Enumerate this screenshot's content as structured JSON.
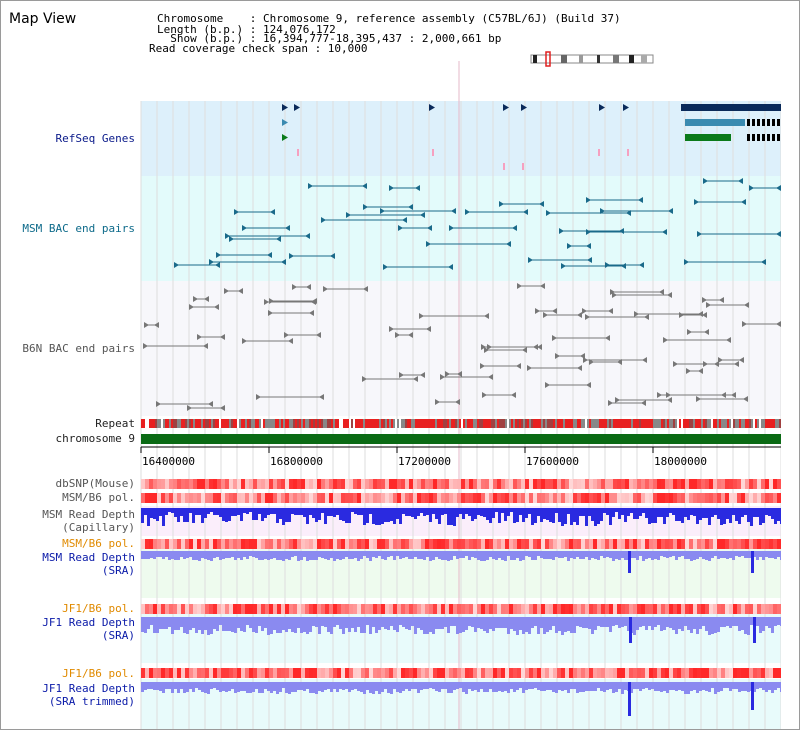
{
  "header": {
    "title": "Map View",
    "chromosome_line": "Chromosome    : Chromosome 9, reference assembly (C57BL/6J) (Build 37)",
    "length_line": "Length (b.p.) : 124,076,172",
    "show_line": "  Show (b.p.) : 16,394,777-18,395,437 : 2,000,661 bp",
    "coverage_line": "Read coverage check span : 10,000"
  },
  "tracks": {
    "refseq": "RefSeq Genes",
    "msm_bac": "MSM BAC end pairs",
    "b6n_bac": "B6N BAC end pairs",
    "repeat": "Repeat",
    "chromosome": "chromosome 9",
    "dbsnp": "dbSNP(Mouse)",
    "msm_b6_pol_1": "MSM/B6 pol.",
    "msm_depth_cap_1": "MSM Read Depth",
    "msm_depth_cap_2": "(Capillary)",
    "msm_b6_pol_2": "MSM/B6 pol.",
    "msm_depth_sra_1": "MSM Read Depth",
    "msm_depth_sra_2": "(SRA)",
    "jf1_b6_pol_1": "JF1/B6 pol.",
    "jf1_depth_sra_1": "JF1 Read Depth",
    "jf1_depth_sra_2": "(SRA)",
    "jf1_b6_pol_2": "JF1/B6 pol.",
    "jf1_depth_trim_1": "JF1 Read Depth",
    "jf1_depth_trim_2": "(SRA trimmed)"
  },
  "axis": {
    "ticks": [
      "16400000",
      "16800000",
      "17200000",
      "17600000",
      "18000000"
    ]
  },
  "colors": {
    "refseq_bg": "#ddf0fb",
    "bac_bg": "#e3fbfb",
    "msm_color": "#1a6a8a",
    "b6n_color": "#777777",
    "chromosome_green": "#0a6a14",
    "depth_blue": "#2a2ae0",
    "depth_light": "#8a8af0",
    "pol_red": "#e83a3a"
  }
}
